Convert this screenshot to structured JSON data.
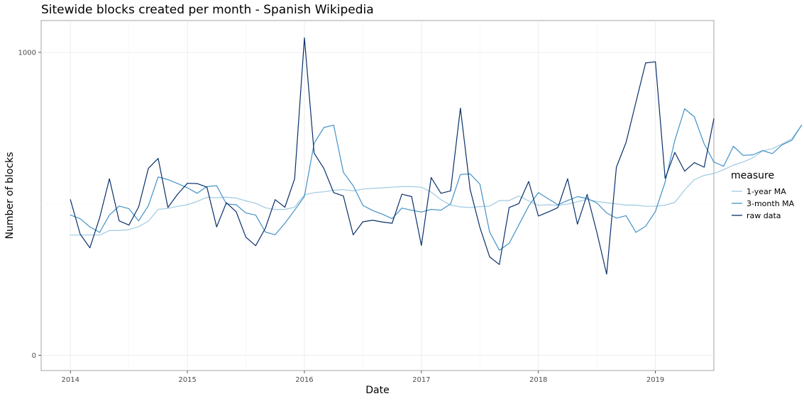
{
  "chart_data": {
    "type": "line",
    "title": "Sitewide blocks created per month - Spanish Wikipedia",
    "xlabel": "Date",
    "ylabel": "Number of blocks",
    "x_ticks": [
      "2014",
      "2015",
      "2016",
      "2017",
      "2018",
      "2019"
    ],
    "y_ticks": [
      0,
      1000
    ],
    "xlim": [
      2013.75,
      2019.5
    ],
    "ylim": [
      -50,
      1105
    ],
    "grid": true,
    "legend_title": "measure",
    "legend_position": "right",
    "series": [
      {
        "name": "1-year MA",
        "color": "#9ecae1",
        "x_start": 2014.0,
        "x_step": 0.0833333,
        "values": [
          397,
          397,
          397,
          397,
          412,
          412,
          415,
          425,
          443,
          482,
          485,
          492,
          497,
          508,
          522,
          520,
          522,
          519,
          510,
          502,
          487,
          481,
          482,
          489,
          530,
          537,
          540,
          545,
          547,
          543,
          549,
          551,
          553,
          555,
          557,
          557,
          555,
          539,
          514,
          496,
          490,
          488,
          491,
          493,
          511,
          511,
          526,
          510,
          495,
          497,
          495,
          499,
          507,
          515,
          508,
          504,
          500,
          496,
          496,
          492,
          492,
          496,
          505,
          546,
          580,
          594,
          600,
          613,
          628,
          638,
          652,
          675,
          682,
          698,
          715,
          760
        ]
      },
      {
        "name": "3-month MA",
        "color": "#4292c6",
        "x_start": 2014.0,
        "x_step": 0.0833333,
        "values": [
          463,
          451,
          424,
          406,
          463,
          493,
          484,
          444,
          494,
          589,
          580,
          567,
          553,
          535,
          557,
          560,
          500,
          497,
          470,
          463,
          407,
          398,
          436,
          479,
          525,
          700,
          752,
          760,
          604,
          560,
          495,
          478,
          466,
          451,
          486,
          479,
          473,
          482,
          479,
          500,
          597,
          599,
          565,
          407,
          347,
          370,
          431,
          493,
          537,
          517,
          497,
          511,
          524,
          518,
          503,
          470,
          453,
          461,
          406,
          426,
          475,
          572,
          710,
          814,
          787,
          698,
          638,
          624,
          690,
          660,
          662,
          676,
          666,
          695,
          710,
          760
        ]
      },
      {
        "name": "raw data",
        "color": "#08306b",
        "x_start": 2014.0,
        "x_step": 0.0833333,
        "values": [
          514,
          400,
          355,
          454,
          583,
          444,
          430,
          490,
          617,
          650,
          488,
          532,
          568,
          567,
          555,
          424,
          504,
          474,
          390,
          362,
          420,
          514,
          489,
          583,
          1048,
          667,
          617,
          537,
          526,
          398,
          441,
          446,
          440,
          436,
          532,
          524,
          363,
          587,
          535,
          543,
          816,
          548,
          422,
          325,
          300,
          488,
          501,
          574,
          460,
          473,
          488,
          583,
          433,
          531,
          406,
          268,
          621,
          703,
          835,
          965,
          969,
          584,
          670,
          608,
          636,
          621,
          781
        ]
      }
    ]
  }
}
